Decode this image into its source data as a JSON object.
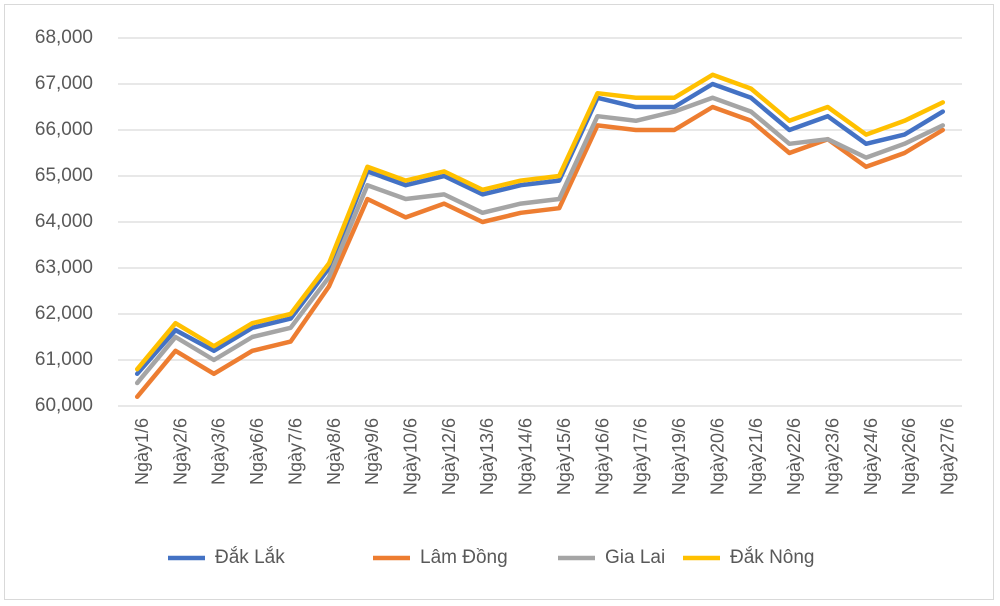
{
  "chart_data": {
    "type": "line",
    "title": "",
    "xlabel": "",
    "ylabel": "",
    "ylim": [
      60000,
      68000
    ],
    "y_ticks": [
      "60,000",
      "61,000",
      "62,000",
      "63,000",
      "64,000",
      "65,000",
      "66,000",
      "67,000",
      "68,000"
    ],
    "y_tick_values": [
      60000,
      61000,
      62000,
      63000,
      64000,
      65000,
      66000,
      67000,
      68000
    ],
    "grid": "horizontal",
    "legend_position": "bottom",
    "categories": [
      "Ngày1/6",
      "Ngày2/6",
      "Ngày3/6",
      "Ngày6/6",
      "Ngày7/6",
      "Ngày8/6",
      "Ngày9/6",
      "Ngày10/6",
      "Ngày12/6",
      "Ngày13/6",
      "Ngày14/6",
      "Ngày15/6",
      "Ngày16/6",
      "Ngày17/6",
      "Ngày19/6",
      "Ngày20/6",
      "Ngày21/6",
      "Ngày22/6",
      "Ngày23/6",
      "Ngày24/6",
      "Ngày26/6",
      "Ngày27/6"
    ],
    "series": [
      {
        "name": "Đắk Lắk",
        "color": "#4472c4",
        "values": [
          60700,
          61650,
          61200,
          61700,
          61900,
          63000,
          65100,
          64800,
          65000,
          64600,
          64800,
          64900,
          66700,
          66500,
          66500,
          67000,
          66700,
          66000,
          66300,
          65700,
          65900,
          66400
        ]
      },
      {
        "name": "Lâm Đồng",
        "color": "#ed7d31",
        "values": [
          60200,
          61200,
          60700,
          61200,
          61400,
          62600,
          64500,
          64100,
          64400,
          64000,
          64200,
          64300,
          66100,
          66000,
          66000,
          66500,
          66200,
          65500,
          65800,
          65200,
          65500,
          66000
        ]
      },
      {
        "name": "Gia Lai",
        "color": "#a5a5a5",
        "values": [
          60500,
          61500,
          61000,
          61500,
          61700,
          62800,
          64800,
          64500,
          64600,
          64200,
          64400,
          64500,
          66300,
          66200,
          66400,
          66700,
          66400,
          65700,
          65800,
          65400,
          65700,
          66100
        ]
      },
      {
        "name": "Đắk Nông",
        "color": "#ffc000",
        "values": [
          60800,
          61800,
          61300,
          61800,
          62000,
          63100,
          65200,
          64900,
          65100,
          64700,
          64900,
          65000,
          66800,
          66700,
          66700,
          67200,
          66900,
          66200,
          66500,
          65900,
          66200,
          66600
        ]
      }
    ]
  }
}
